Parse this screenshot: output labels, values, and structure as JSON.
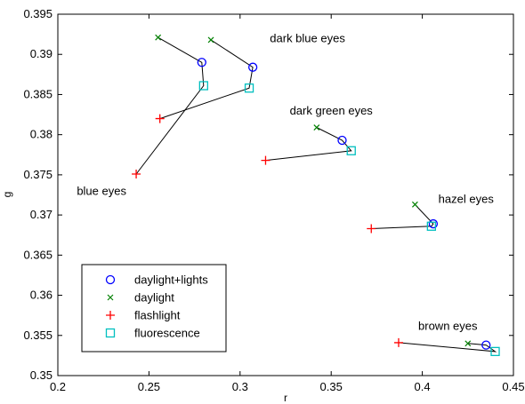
{
  "chart_data": {
    "type": "scatter",
    "title": "",
    "xlabel": "r",
    "ylabel": "g",
    "xlim": [
      0.2,
      0.45
    ],
    "ylim": [
      0.35,
      0.395
    ],
    "xticks": [
      "0.2",
      "0.25",
      "0.3",
      "0.35",
      "0.4",
      "0.45"
    ],
    "yticks": [
      "0.35",
      "0.355",
      "0.36",
      "0.365",
      "0.37",
      "0.375",
      "0.38",
      "0.385",
      "0.39",
      "0.395"
    ],
    "grid": false,
    "legend_position": "bottom-left",
    "series": [
      {
        "name": "daylight+lights",
        "marker": "circle",
        "color": "#0000ff"
      },
      {
        "name": "daylight",
        "marker": "x",
        "color": "#008000"
      },
      {
        "name": "flashlight",
        "marker": "plus",
        "color": "#ff0000"
      },
      {
        "name": "fluorescence",
        "marker": "square",
        "color": "#00bfbf"
      }
    ],
    "groups": [
      {
        "label": "dark blue eyes",
        "label_at": [
          0.337,
          0.3915
        ],
        "points": {
          "daylight+lights": [
            0.307,
            0.3884
          ],
          "daylight": [
            0.284,
            0.3918
          ],
          "flashlight": [
            0.256,
            0.382
          ],
          "fluorescence": [
            0.305,
            0.3858
          ]
        }
      },
      {
        "label": "blue eyes",
        "label_at": [
          0.224,
          0.3725
        ],
        "points": {
          "daylight+lights": [
            0.279,
            0.389
          ],
          "daylight": [
            0.255,
            0.3921
          ],
          "flashlight": [
            0.243,
            0.3751
          ],
          "fluorescence": [
            0.28,
            0.3861
          ]
        }
      },
      {
        "label": "dark green eyes",
        "label_at": [
          0.35,
          0.3825
        ],
        "points": {
          "daylight+lights": [
            0.356,
            0.3793
          ],
          "daylight": [
            0.342,
            0.3809
          ],
          "flashlight": [
            0.314,
            0.3768
          ],
          "fluorescence": [
            0.361,
            0.378
          ]
        }
      },
      {
        "label": "hazel eyes",
        "label_at": [
          0.424,
          0.3715
        ],
        "points": {
          "daylight+lights": [
            0.406,
            0.3689
          ],
          "daylight": [
            0.396,
            0.3713
          ],
          "flashlight": [
            0.372,
            0.3683
          ],
          "fluorescence": [
            0.405,
            0.3686
          ]
        }
      },
      {
        "label": "brown eyes",
        "label_at": [
          0.414,
          0.3557
        ],
        "points": {
          "daylight+lights": [
            0.435,
            0.3538
          ],
          "daylight": [
            0.425,
            0.354
          ],
          "flashlight": [
            0.387,
            0.3541
          ],
          "fluorescence": [
            0.44,
            0.353
          ]
        }
      }
    ]
  },
  "colors": {
    "line": "#000000",
    "axis": "#000000",
    "background": "#ffffff"
  }
}
